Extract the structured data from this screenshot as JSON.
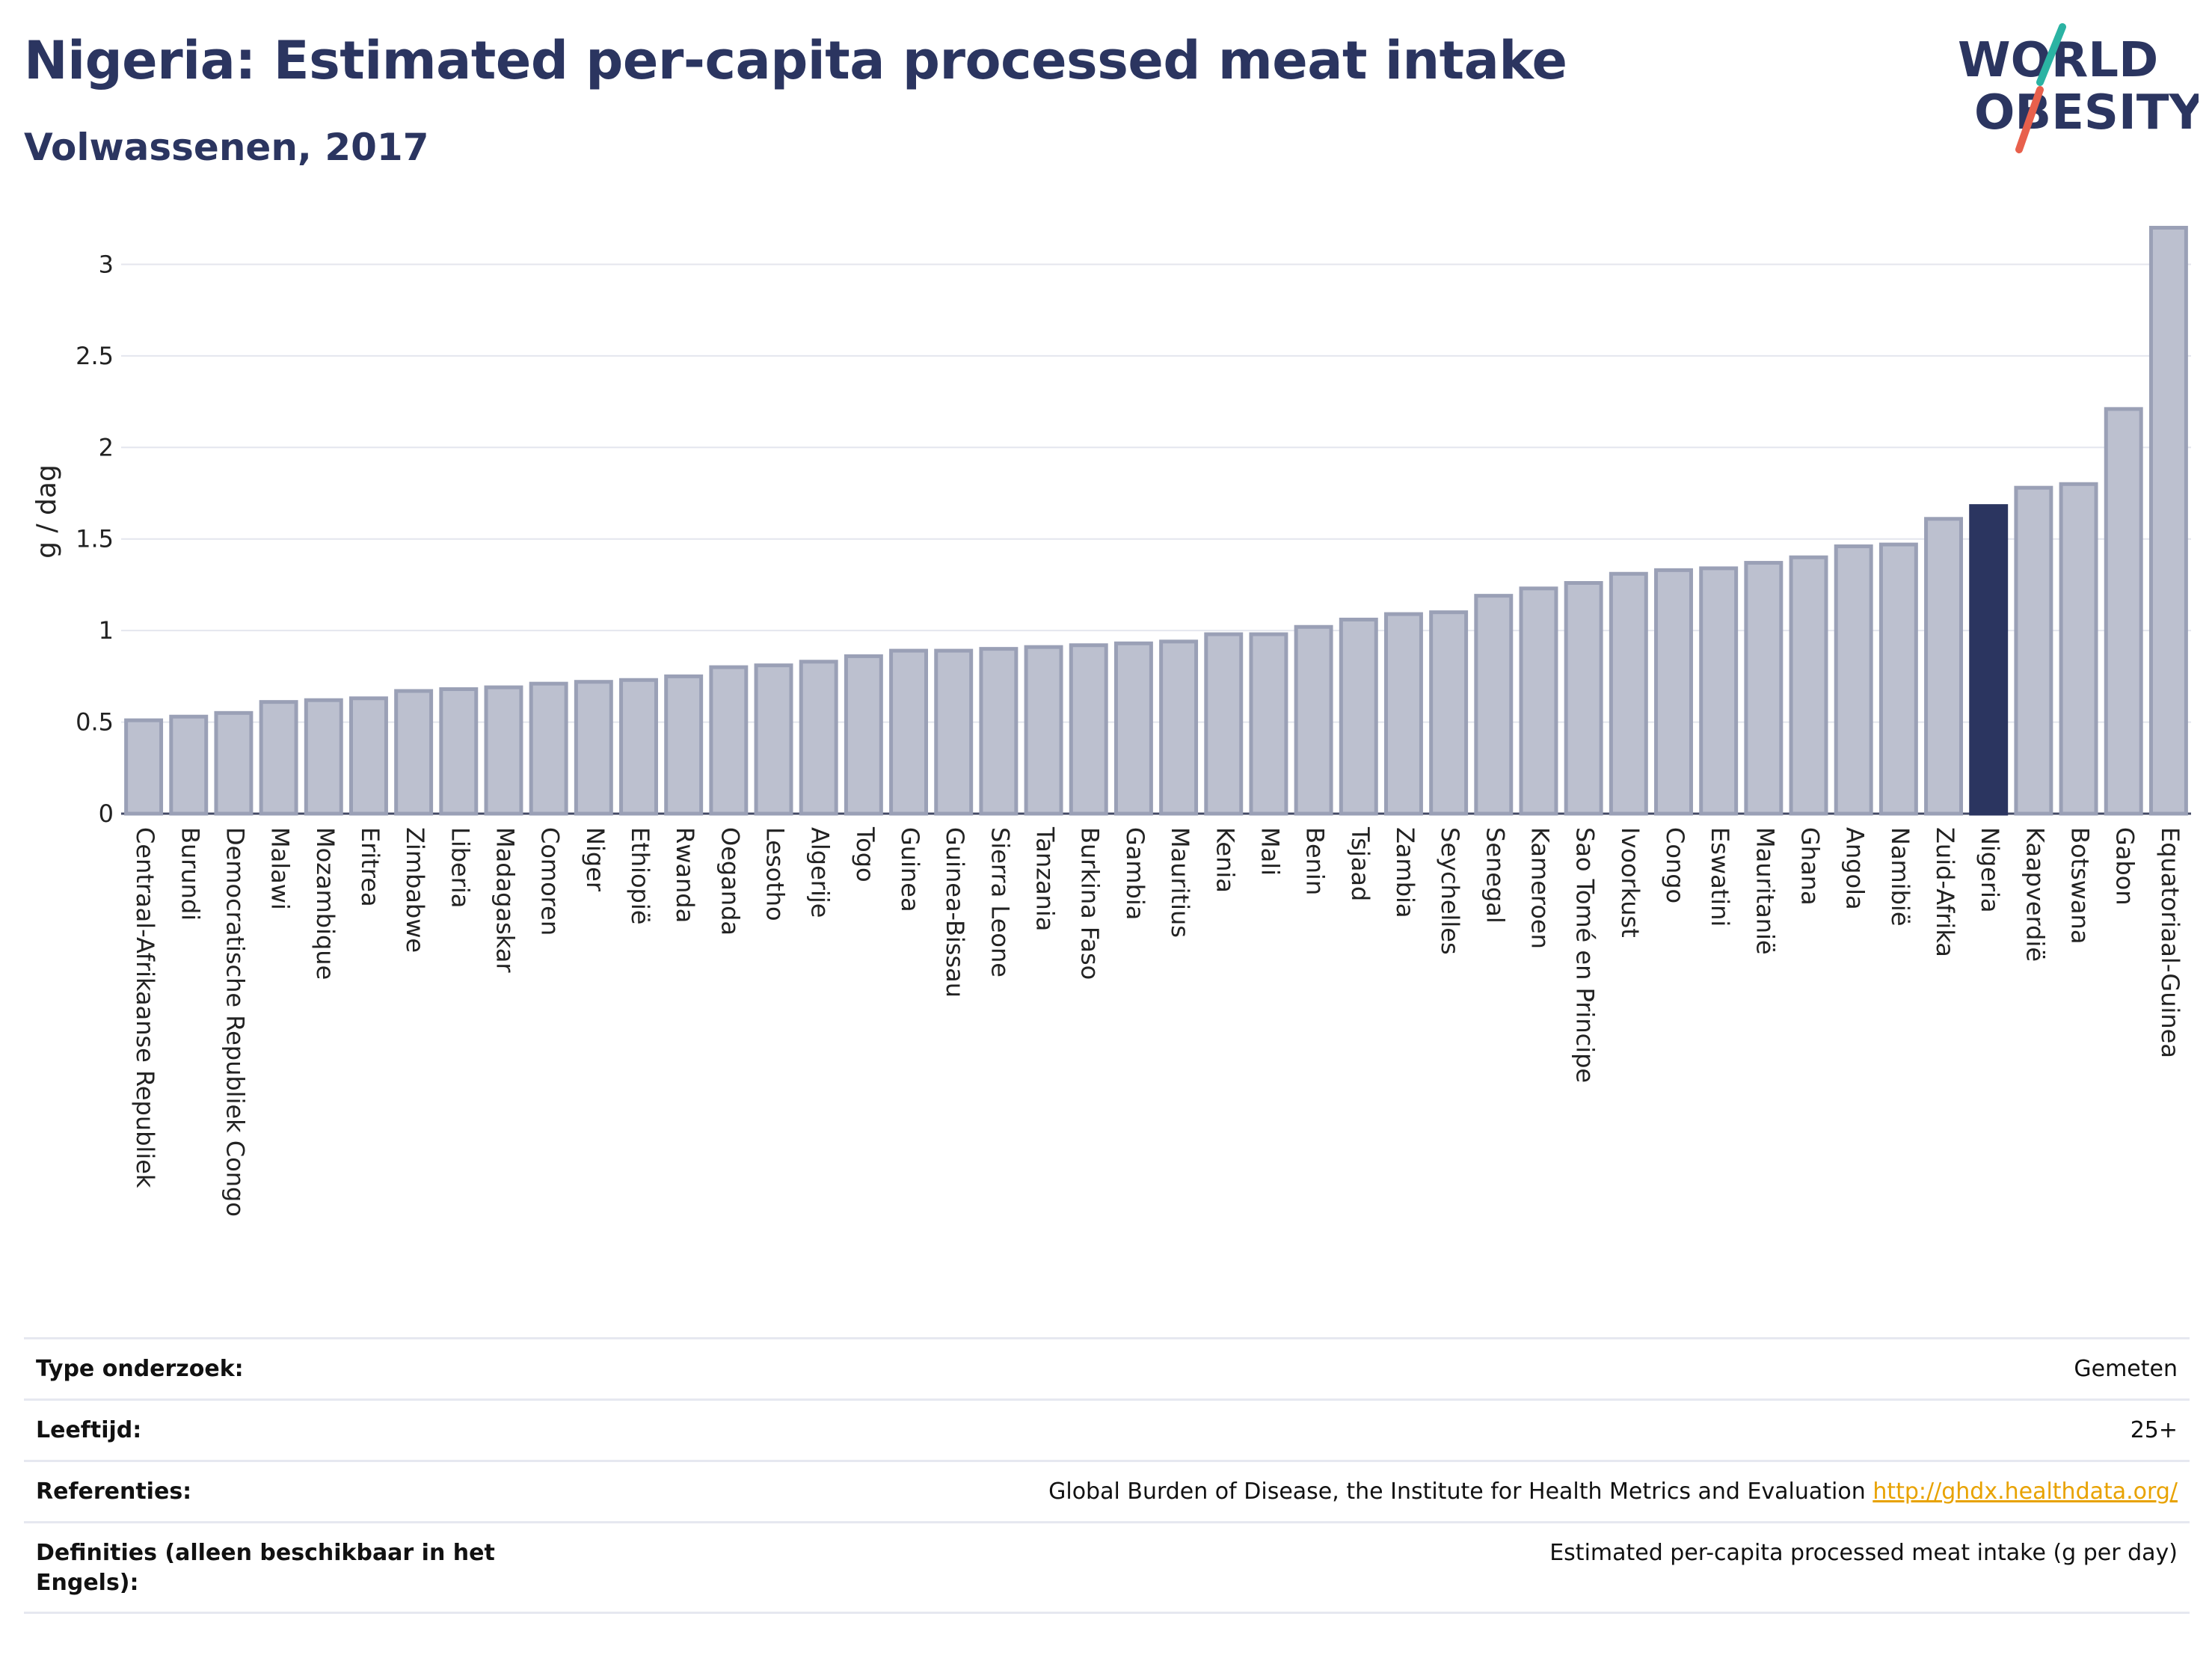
{
  "header": {
    "title": "Nigeria: Estimated per-capita processed meat intake",
    "subtitle": "Volwassenen, 2017"
  },
  "logo": {
    "line1": "WORLD",
    "line2": "OBESITY",
    "text_color": "#2b3560",
    "accent_teal": "#2bb3a3",
    "accent_red": "#e8604c"
  },
  "chart_data": {
    "type": "bar",
    "ylabel": "g / dag",
    "ylim": [
      0,
      3.3
    ],
    "yticks": [
      0,
      0.5,
      1,
      1.5,
      2,
      2.5,
      3
    ],
    "ytick_labels": [
      "0",
      "0.5",
      "1",
      "1.5",
      "2",
      "2.5",
      "3"
    ],
    "grid": true,
    "highlight": "Nigeria",
    "colors": {
      "bar": "#bcc0cf",
      "bar_border": "#9aa0b6",
      "highlight": "#2b3560"
    },
    "categories": [
      "Centraal-Afrikaanse Republiek",
      "Burundi",
      "Democratische Republiek Congo",
      "Malawi",
      "Mozambique",
      "Eritrea",
      "Zimbabwe",
      "Liberia",
      "Madagaskar",
      "Comoren",
      "Niger",
      "Ethiopië",
      "Rwanda",
      "Oeganda",
      "Lesotho",
      "Algerije",
      "Togo",
      "Guinea",
      "Guinea-Bissau",
      "Sierra Leone",
      "Tanzania",
      "Burkina Faso",
      "Gambia",
      "Mauritius",
      "Kenia",
      "Mali",
      "Benin",
      "Tsjaad",
      "Zambia",
      "Seychelles",
      "Senegal",
      "Kameroen",
      "Sao Tomé en Principe",
      "Ivoorkust",
      "Congo",
      "Eswatini",
      "Mauritanië",
      "Ghana",
      "Angola",
      "Namibië",
      "Zuid-Afrika",
      "Nigeria",
      "Kaapverdië",
      "Botswana",
      "Gabon",
      "Equatoriaal-Guinea"
    ],
    "values": [
      0.51,
      0.53,
      0.55,
      0.61,
      0.62,
      0.63,
      0.67,
      0.68,
      0.69,
      0.71,
      0.72,
      0.73,
      0.75,
      0.8,
      0.81,
      0.83,
      0.86,
      0.89,
      0.89,
      0.9,
      0.91,
      0.92,
      0.93,
      0.94,
      0.98,
      0.98,
      1.02,
      1.06,
      1.09,
      1.1,
      1.19,
      1.23,
      1.26,
      1.31,
      1.33,
      1.34,
      1.37,
      1.4,
      1.46,
      1.47,
      1.61,
      1.68,
      1.78,
      1.8,
      2.21,
      3.2
    ]
  },
  "info": [
    {
      "key": "Type onderzoek:",
      "value": "Gemeten"
    },
    {
      "key": "Leeftijd:",
      "value": "25+"
    },
    {
      "key": "Referenties:",
      "value": "Global Burden of Disease, the Institute for Health Metrics and Evaluation",
      "link": "http://ghdx.healthdata.org/"
    },
    {
      "key": "Definities (alleen beschikbaar in het Engels):",
      "value": "Estimated per-capita processed meat intake (g per day)"
    }
  ]
}
